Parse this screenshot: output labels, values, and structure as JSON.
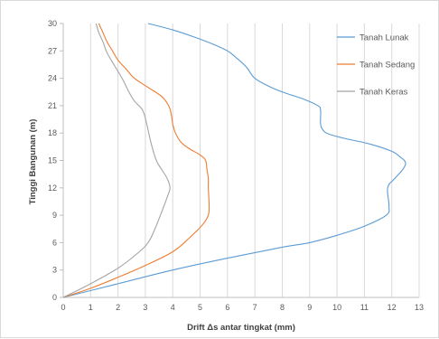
{
  "chart_data": {
    "type": "line",
    "title": "",
    "xlabel": "Drift Δs antar tingkat (mm)",
    "ylabel": "Tinggi Bangunan (m)",
    "xlim": [
      0,
      13
    ],
    "ylim": [
      0,
      30
    ],
    "xticks": [
      0,
      1,
      2,
      3,
      4,
      5,
      6,
      7,
      8,
      9,
      10,
      11,
      12,
      13
    ],
    "yticks": [
      0,
      3,
      6,
      9,
      12,
      15,
      18,
      21,
      24,
      27,
      30
    ],
    "grid": "vertical",
    "legend_position": "right",
    "series": [
      {
        "name": "Tanah Lunak",
        "color": "#5b9bd5",
        "points": [
          [
            0,
            0
          ],
          [
            2,
            1.5
          ],
          [
            4,
            3
          ],
          [
            6,
            4.3
          ],
          [
            8,
            5.5
          ],
          [
            9,
            6
          ],
          [
            10,
            6.8
          ],
          [
            11,
            7.8
          ],
          [
            11.8,
            9
          ],
          [
            11.9,
            10
          ],
          [
            11.85,
            12
          ],
          [
            12.1,
            13
          ],
          [
            12.4,
            14
          ],
          [
            12.5,
            14.8
          ],
          [
            12.3,
            15.4
          ],
          [
            12,
            16
          ],
          [
            11.2,
            16.8
          ],
          [
            10.3,
            17.4
          ],
          [
            9.7,
            17.9
          ],
          [
            9.5,
            18.3
          ],
          [
            9.4,
            19
          ],
          [
            9.4,
            20.5
          ],
          [
            9.3,
            21
          ],
          [
            8.8,
            21.7
          ],
          [
            8.2,
            22.3
          ],
          [
            7.6,
            23
          ],
          [
            7,
            24
          ],
          [
            6.7,
            25.2
          ],
          [
            6.3,
            26.3
          ],
          [
            6,
            27
          ],
          [
            5.5,
            27.7
          ],
          [
            4.8,
            28.5
          ],
          [
            4,
            29.3
          ],
          [
            3.1,
            30
          ]
        ]
      },
      {
        "name": "Tanah Sedang",
        "color": "#ed7d31",
        "points": [
          [
            0,
            0
          ],
          [
            1,
            1
          ],
          [
            2,
            2.2
          ],
          [
            3,
            3.5
          ],
          [
            4,
            5
          ],
          [
            4.6,
            6.5
          ],
          [
            5.1,
            8
          ],
          [
            5.3,
            9
          ],
          [
            5.33,
            10
          ],
          [
            5.3,
            12
          ],
          [
            5.3,
            13
          ],
          [
            5.25,
            14
          ],
          [
            5.2,
            15
          ],
          [
            5.0,
            15.6
          ],
          [
            4.6,
            16.3
          ],
          [
            4.3,
            17
          ],
          [
            4.1,
            18
          ],
          [
            4.0,
            19
          ],
          [
            3.95,
            20
          ],
          [
            3.85,
            21
          ],
          [
            3.6,
            22
          ],
          [
            3.1,
            23
          ],
          [
            2.6,
            24
          ],
          [
            2.3,
            25
          ],
          [
            2.0,
            26
          ],
          [
            1.8,
            27
          ],
          [
            1.6,
            28
          ],
          [
            1.45,
            29
          ],
          [
            1.3,
            30
          ]
        ]
      },
      {
        "name": "Tanah Keras",
        "color": "#a5a5a5",
        "points": [
          [
            0,
            0
          ],
          [
            1,
            1.5
          ],
          [
            2,
            3.2
          ],
          [
            2.7,
            4.8
          ],
          [
            3.1,
            6
          ],
          [
            3.35,
            7.5
          ],
          [
            3.55,
            9
          ],
          [
            3.8,
            11
          ],
          [
            3.9,
            12
          ],
          [
            3.8,
            13
          ],
          [
            3.6,
            14
          ],
          [
            3.4,
            15
          ],
          [
            3.2,
            17
          ],
          [
            3.05,
            19
          ],
          [
            2.9,
            20.5
          ],
          [
            2.6,
            21.5
          ],
          [
            2.4,
            22.5
          ],
          [
            2.15,
            24
          ],
          [
            1.85,
            25.5
          ],
          [
            1.6,
            26.8
          ],
          [
            1.45,
            28
          ],
          [
            1.3,
            29
          ],
          [
            1.2,
            30
          ]
        ]
      }
    ]
  }
}
